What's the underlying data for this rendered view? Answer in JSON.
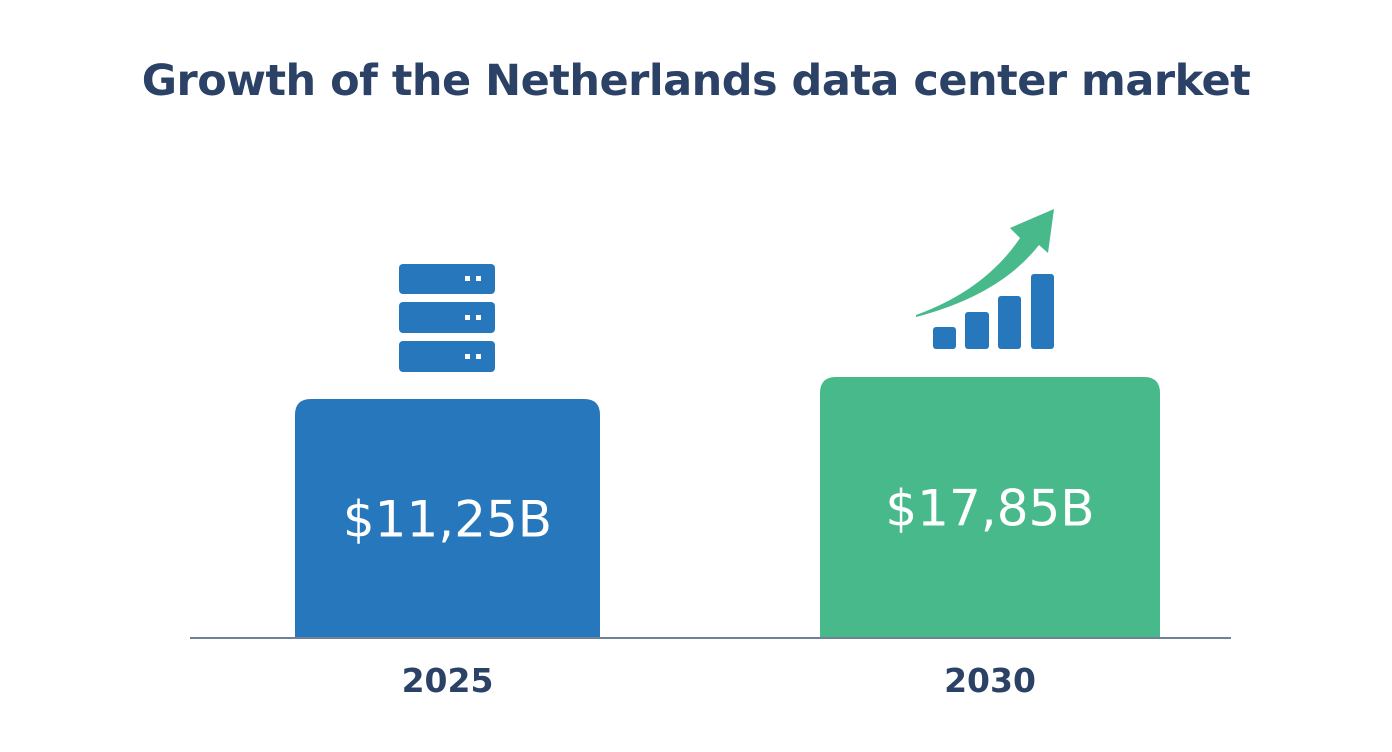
{
  "chart_data": {
    "type": "bar",
    "title": "Growth of the Netherlands data center market",
    "categories": [
      "2025",
      "2030"
    ],
    "values": [
      11.25,
      17.85
    ],
    "value_labels": [
      "$11,25B",
      "$17,85B"
    ],
    "bar_colors": [
      "#2677bb",
      "#47b98a"
    ],
    "icons": [
      "server-icon",
      "growth-chart-arrow-icon"
    ],
    "xlabel": "",
    "ylabel": "",
    "grid": false,
    "legend": "none"
  },
  "colors": {
    "title": "#2b4166",
    "axis": "#6f8197",
    "icon_blue": "#2677bb",
    "icon_green": "#47b98a"
  }
}
